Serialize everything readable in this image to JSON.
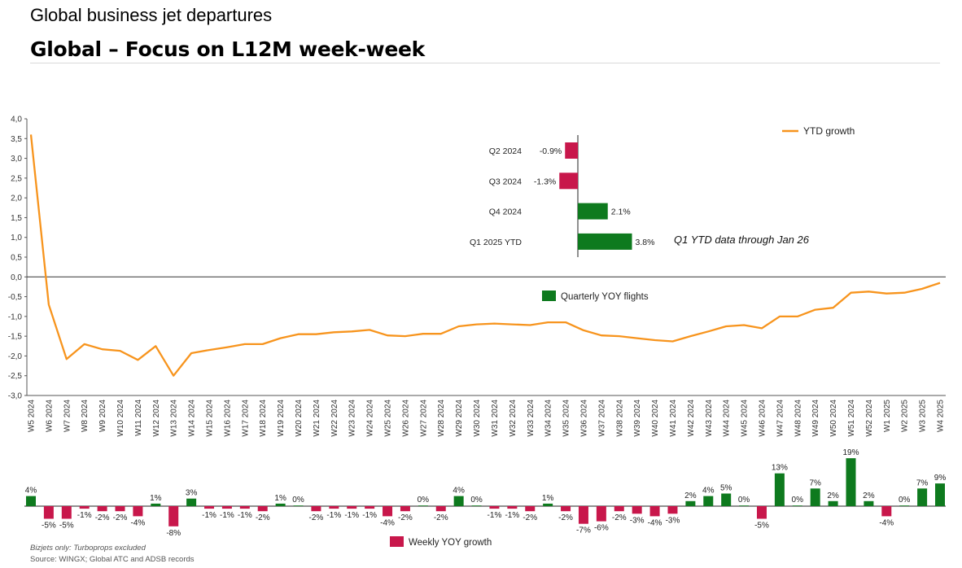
{
  "page": {
    "heading": "Global business jet departures",
    "subheading": "Global – Focus on L12M week-week",
    "note_bizjets": "Bizjets only: Turboprops excluded",
    "note_source": "Source: WINGX; Global ATC and ADSB records"
  },
  "colors": {
    "ytd_line": "#F7941D",
    "positive_bar": "#0E7A1E",
    "negative_bar": "#C8174B",
    "axis": "#555555"
  },
  "chart_data": [
    {
      "type": "line",
      "series": [
        {
          "name": "YTD growth",
          "values": [
            3.6,
            -0.7,
            -2.08,
            -1.7,
            -1.83,
            -1.87,
            -2.1,
            -1.75,
            -2.5,
            -1.93,
            -1.85,
            -1.78,
            -1.7,
            -1.7,
            -1.55,
            -1.45,
            -1.45,
            -1.4,
            -1.38,
            -1.34,
            -1.48,
            -1.5,
            -1.44,
            -1.44,
            -1.25,
            -1.2,
            -1.18,
            -1.2,
            -1.22,
            -1.15,
            -1.15,
            -1.35,
            -1.48,
            -1.5,
            -1.55,
            -1.6,
            -1.63,
            -1.5,
            -1.38,
            -1.25,
            -1.22,
            -1.3,
            -1.0,
            -1.0,
            -0.83,
            -0.78,
            -0.4,
            -0.37,
            -0.42,
            -0.4,
            -0.3,
            -0.15
          ]
        }
      ],
      "categories": [
        "W5 2024",
        "W6 2024",
        "W7 2024",
        "W8 2024",
        "W9 2024",
        "W10 2024",
        "W11 2024",
        "W12 2024",
        "W13 2024",
        "W14 2024",
        "W15 2024",
        "W16 2024",
        "W17 2024",
        "W18 2024",
        "W19 2024",
        "W20 2024",
        "W21 2024",
        "W22 2024",
        "W23 2024",
        "W24 2024",
        "W25 2024",
        "W26 2024",
        "W27 2024",
        "W28 2024",
        "W29 2024",
        "W30 2024",
        "W31 2024",
        "W32 2024",
        "W33 2024",
        "W34 2024",
        "W35 2024",
        "W36 2024",
        "W37 2024",
        "W38 2024",
        "W39 2024",
        "W40 2024",
        "W41 2024",
        "W42 2024",
        "W43 2024",
        "W44 2024",
        "W45 2024",
        "W46 2024",
        "W47 2024",
        "W48 2024",
        "W49 2024",
        "W50 2024",
        "W51 2024",
        "W52 2024",
        "W1 2025",
        "W2 2025",
        "W3 2025",
        "W4 2025"
      ],
      "ylim": [
        -3.0,
        4.0
      ],
      "yticks": [
        "4,0",
        "3,5",
        "3,0",
        "2,5",
        "2,0",
        "1,5",
        "1,0",
        "0,5",
        "0,0",
        "-0,5",
        "-1,0",
        "-1,5",
        "-2,0",
        "-2,5",
        "-3,0"
      ],
      "legend_position": "top-right"
    },
    {
      "type": "bar",
      "categories": [
        "Q2 2024",
        "Q3 2024",
        "Q4 2024",
        "Q1 2025 YTD"
      ],
      "values": [
        -0.9,
        -1.3,
        2.1,
        3.8
      ],
      "labels": [
        "-0.9%",
        "-1.3%",
        "2.1%",
        "3.8%"
      ],
      "series_name": "Quarterly YOY flights",
      "annotation": "Q1 YTD data through Jan 26"
    },
    {
      "type": "bar",
      "series_name": "Weekly YOY growth",
      "values": [
        4,
        -5,
        -5,
        -1,
        -2,
        -2,
        -4,
        1,
        -8,
        3,
        -1,
        -1,
        -1,
        -2,
        1,
        0,
        -2,
        -1,
        -1,
        -1,
        -4,
        -2,
        0,
        -2,
        4,
        0,
        -1,
        -1,
        -2,
        1,
        -2,
        -7,
        -6,
        -2,
        -3,
        -4,
        -3,
        2,
        4,
        5,
        0,
        -5,
        13,
        0,
        7,
        2,
        19,
        2,
        -4,
        0,
        7,
        9
      ],
      "labels": [
        "4%",
        "-5%",
        "-5%",
        "-1%",
        "-2%",
        "-2%",
        "-4%",
        "1%",
        "-8%",
        "3%",
        "-1%",
        "-1%",
        "-1%",
        "-2%",
        "1%",
        "0%",
        "-2%",
        "-1%",
        "-1%",
        "-1%",
        "-4%",
        "-2%",
        "0%",
        "-2%",
        "4%",
        "0%",
        "-1%",
        "-1%",
        "-2%",
        "1%",
        "-2%",
        "-7%",
        "-6%",
        "-2%",
        "-3%",
        "-4%",
        "-3%",
        "2%",
        "4%",
        "5%",
        "0%",
        "-5%",
        "13%",
        "0%",
        "7%",
        "2%",
        "19%",
        "2%",
        "-4%",
        "0%",
        "7%",
        "9%"
      ]
    }
  ]
}
